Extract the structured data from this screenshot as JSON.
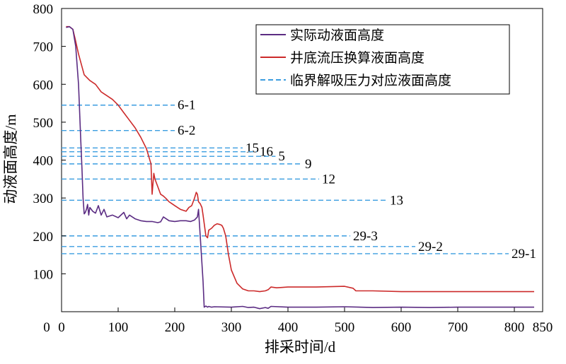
{
  "chart_data": {
    "type": "line",
    "xlabel": "排采时间/d",
    "ylabel": "动液面高度/m",
    "xlim": [
      0,
      850
    ],
    "ylim": [
      0,
      800
    ],
    "xticks": [
      0,
      100,
      200,
      300,
      400,
      500,
      600,
      700,
      800,
      850
    ],
    "yticks": [
      100,
      200,
      300,
      400,
      500,
      600,
      700,
      800
    ],
    "grid": false,
    "legend_position": "top-right",
    "series": [
      {
        "name": "实际动液面高度",
        "color": "#5b2c83",
        "style": "solid",
        "x": [
          8,
          14,
          20,
          25,
          30,
          34,
          36,
          38,
          40,
          42,
          44,
          46,
          48,
          50,
          55,
          60,
          65,
          70,
          75,
          80,
          90,
          100,
          110,
          115,
          120,
          130,
          140,
          150,
          160,
          170,
          175,
          180,
          190,
          200,
          210,
          220,
          228,
          235,
          240,
          242,
          245,
          250,
          252,
          255,
          258,
          260,
          265,
          270,
          300,
          320,
          330,
          340,
          350,
          360,
          365,
          370,
          400,
          450,
          500,
          550,
          600,
          650,
          700,
          750,
          800,
          835
        ],
        "y": [
          750,
          752,
          745,
          700,
          600,
          450,
          380,
          300,
          258,
          262,
          270,
          283,
          255,
          275,
          265,
          260,
          280,
          255,
          270,
          250,
          255,
          248,
          262,
          245,
          255,
          245,
          240,
          238,
          238,
          235,
          237,
          250,
          240,
          238,
          240,
          240,
          238,
          242,
          250,
          270,
          200,
          80,
          12,
          15,
          12,
          14,
          12,
          13,
          12,
          14,
          11,
          12,
          8,
          11,
          9,
          14,
          12,
          12,
          13,
          11,
          12,
          11,
          12,
          12,
          12,
          12
        ]
      },
      {
        "name": "井底流压换算液面高度",
        "color": "#cc2a2a",
        "style": "solid",
        "x": [
          8,
          14,
          20,
          24,
          30,
          40,
          50,
          60,
          70,
          75,
          80,
          90,
          100,
          110,
          120,
          130,
          140,
          150,
          155,
          158,
          160,
          163,
          165,
          170,
          175,
          180,
          185,
          190,
          195,
          200,
          210,
          220,
          225,
          230,
          235,
          238,
          240,
          242,
          245,
          248,
          250,
          255,
          258,
          260,
          265,
          270,
          275,
          280,
          283,
          286,
          290,
          295,
          300,
          310,
          320,
          330,
          340,
          350,
          360,
          365,
          370,
          380,
          400,
          450,
          500,
          515,
          520,
          550,
          600,
          650,
          700,
          750,
          800,
          835
        ],
        "y": [
          752,
          752,
          745,
          720,
          680,
          625,
          610,
          600,
          580,
          575,
          570,
          560,
          545,
          525,
          505,
          485,
          460,
          430,
          405,
          390,
          310,
          365,
          350,
          330,
          310,
          305,
          298,
          290,
          285,
          280,
          270,
          265,
          275,
          280,
          300,
          315,
          310,
          290,
          285,
          275,
          255,
          200,
          195,
          215,
          220,
          228,
          232,
          230,
          228,
          220,
          200,
          150,
          110,
          75,
          60,
          55,
          55,
          53,
          55,
          58,
          65,
          63,
          65,
          65,
          67,
          62,
          55,
          55,
          53,
          53,
          53,
          53,
          53,
          53
        ]
      },
      {
        "name": "临界解吸压力对应液面高度",
        "color": "#3b9de0",
        "style": "dashed",
        "lines": [
          {
            "label": "6-1",
            "y": 545,
            "x_end": 200
          },
          {
            "label": "6-2",
            "y": 478,
            "x_end": 200
          },
          {
            "label": "15",
            "y": 432,
            "x_end": 320
          },
          {
            "label": "16",
            "y": 422,
            "x_end": 345
          },
          {
            "label": "5",
            "y": 410,
            "x_end": 378
          },
          {
            "label": "9",
            "y": 390,
            "x_end": 425
          },
          {
            "label": "12",
            "y": 350,
            "x_end": 455
          },
          {
            "label": "13",
            "y": 294,
            "x_end": 575
          },
          {
            "label": "29-3",
            "y": 200,
            "x_end": 510
          },
          {
            "label": "29-2",
            "y": 172,
            "x_end": 625
          },
          {
            "label": "29-1",
            "y": 153,
            "x_end": 790
          }
        ]
      }
    ]
  }
}
